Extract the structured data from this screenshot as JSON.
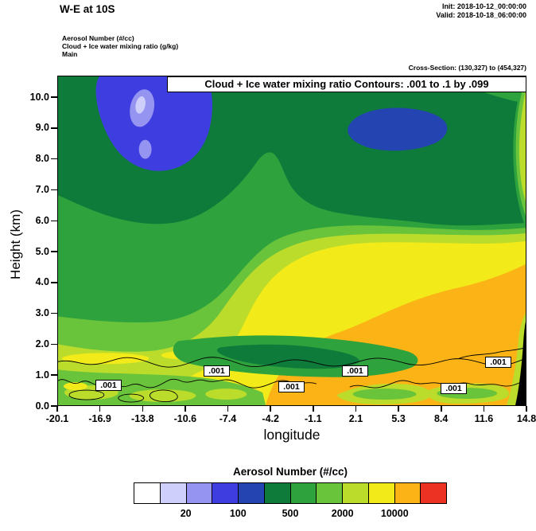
{
  "header": {
    "title": "W-E at 10S",
    "init": "Init: 2018-10-12_00:00:00",
    "valid": "Valid: 2018-10-18_06:00:00"
  },
  "legend_block": {
    "line1": "Aerosol Number  (#/cc)",
    "line2": "Cloud + Ice water mixing ratio  (g/kg)",
    "line3": "Main",
    "cross_section": "Cross-Section: (130,327) to (454,327)"
  },
  "plot": {
    "contour_title": "Cloud + Ice water mixing ratio Contours: .001 to .1 by .099",
    "contour_label": ".001",
    "xlabel": "longitude",
    "ylabel": "Height (km)",
    "x_ticks": [
      "-20.1",
      "-16.9",
      "-13.8",
      "-10.6",
      "-7.4",
      "-4.2",
      "-1.1",
      "2.1",
      "5.3",
      "8.4",
      "11.6",
      "14.8"
    ],
    "y_ticks": [
      "0.0",
      "1.0",
      "2.0",
      "3.0",
      "4.0",
      "5.0",
      "6.0",
      "7.0",
      "8.0",
      "9.0",
      "10.0"
    ]
  },
  "colorbar": {
    "title": "Aerosol Number  (#/cc)",
    "labels": [
      "20",
      "100",
      "500",
      "2000",
      "10000"
    ],
    "colors": [
      "#FFFFFF",
      "#CFCFFB",
      "#9595F1",
      "#3E3EE0",
      "#2444B2",
      "#0E7B3B",
      "#2EA23C",
      "#6AC43B",
      "#BCDC2B",
      "#F2EA19",
      "#FBB316",
      "#EB3223"
    ]
  },
  "chart_data": {
    "type": "heatmap",
    "title": "Cloud + Ice water mixing ratio Contours: .001 to .1 by .099",
    "subtitle": "W-E vertical cross-section at 10S, Cross-Section: (130,327) to (454,327)",
    "xlabel": "longitude",
    "ylabel": "Height (km)",
    "x_ticks": [
      -20.1,
      -16.9,
      -13.8,
      -10.6,
      -7.4,
      -4.2,
      -1.1,
      2.1,
      5.3,
      8.4,
      11.6,
      14.8
    ],
    "y_ticks": [
      0.0,
      1.0,
      2.0,
      3.0,
      4.0,
      5.0,
      6.0,
      7.0,
      8.0,
      9.0,
      10.0
    ],
    "ylim": [
      0,
      10.7
    ],
    "grid": false,
    "legend_position": "bottom",
    "fill_field": {
      "name": "Aerosol Number (#/cc)",
      "scale_labels": [
        20,
        100,
        500,
        2000,
        10000
      ],
      "palette": [
        "#FFFFFF",
        "#CFCFFB",
        "#9595F1",
        "#3E3EE0",
        "#2444B2",
        "#0E7B3B",
        "#2EA23C",
        "#6AC43B",
        "#BCDC2B",
        "#F2EA19",
        "#FBB316",
        "#EB3223"
      ],
      "approx_values_grid": {
        "heights_km": [
          10,
          9,
          8,
          6,
          4,
          3,
          2,
          0.5
        ],
        "longitudes": [
          -20.1,
          -16.9,
          -13.8,
          -10.6,
          -7.4,
          -4.2,
          -1.1,
          2.1,
          5.3,
          8.4,
          11.6,
          14.8
        ],
        "values": [
          [
            300,
            80,
            30,
            80,
            300,
            300,
            300,
            300,
            300,
            300,
            300,
            400
          ],
          [
            300,
            150,
            60,
            300,
            300,
            300,
            300,
            150,
            150,
            300,
            300,
            700
          ],
          [
            300,
            300,
            300,
            300,
            300,
            300,
            300,
            300,
            300,
            300,
            700,
            1500
          ],
          [
            700,
            700,
            700,
            700,
            300,
            300,
            300,
            300,
            300,
            700,
            700,
            3000
          ],
          [
            700,
            700,
            700,
            700,
            1500,
            3000,
            7000,
            7000,
            7000,
            7000,
            7000,
            7000
          ],
          [
            700,
            700,
            700,
            1500,
            3000,
            7000,
            15000,
            15000,
            15000,
            15000,
            15000,
            15000
          ],
          [
            1500,
            1500,
            1500,
            1500,
            3000,
            7000,
            700,
            700,
            15000,
            15000,
            15000,
            15000
          ],
          [
            1500,
            3000,
            1500,
            3000,
            3000,
            7000,
            7000,
            15000,
            3000,
            15000,
            15000,
            15000
          ]
        ],
        "note": "Aerosol number concentrations estimated from fill colors; blue/lavender minimum aloft near lon -14 at 9-10 km and lon 2-8 at 9 km; orange maximum (>10000 #/cc) below ~4 km east of lon -4."
      }
    },
    "contour_overlay": {
      "name": "Cloud + Ice water mixing ratio (g/kg)",
      "levels": [
        0.001,
        0.1
      ],
      "label": ".001",
      "description": "Thin black contour lines between ~0.4 and ~1.3 km spanning the section, labelled .001"
    },
    "terrain": "black wedge at far right edge below ~2.5 km"
  }
}
